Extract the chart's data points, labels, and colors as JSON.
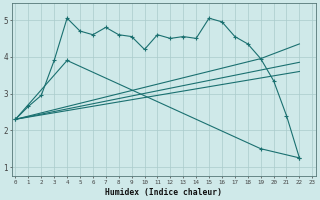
{
  "background_color": "#cfe9e9",
  "grid_color": "#aacccc",
  "line_color": "#1a7070",
  "xlabel": "Humidex (Indice chaleur)",
  "x_ticks": [
    0,
    1,
    2,
    3,
    4,
    5,
    6,
    7,
    8,
    9,
    10,
    11,
    12,
    13,
    14,
    15,
    16,
    17,
    18,
    19,
    20,
    21,
    22,
    23
  ],
  "y_ticks": [
    1,
    2,
    3,
    4,
    5
  ],
  "xlim": [
    -0.3,
    23.3
  ],
  "ylim": [
    0.75,
    5.45
  ],
  "series1_x": [
    0,
    1,
    2,
    3,
    4,
    5,
    6,
    7,
    8,
    9,
    10,
    11,
    12,
    13,
    14,
    15,
    16,
    17,
    18,
    19,
    20,
    21,
    22
  ],
  "series1_y": [
    2.3,
    2.65,
    2.95,
    3.9,
    5.05,
    4.7,
    4.6,
    4.8,
    4.6,
    4.55,
    4.2,
    4.6,
    4.5,
    4.55,
    4.5,
    5.05,
    4.95,
    4.55,
    4.35,
    3.95,
    3.35,
    2.4,
    1.25
  ],
  "series2_x": [
    0,
    19,
    22
  ],
  "series2_y": [
    2.3,
    3.95,
    4.35
  ],
  "series3_x": [
    0,
    22
  ],
  "series3_y": [
    2.3,
    3.85
  ],
  "series4_x": [
    0,
    22
  ],
  "series4_y": [
    2.3,
    3.6
  ],
  "series5_x": [
    0,
    4,
    19,
    22
  ],
  "series5_y": [
    2.3,
    3.9,
    1.5,
    1.25
  ]
}
